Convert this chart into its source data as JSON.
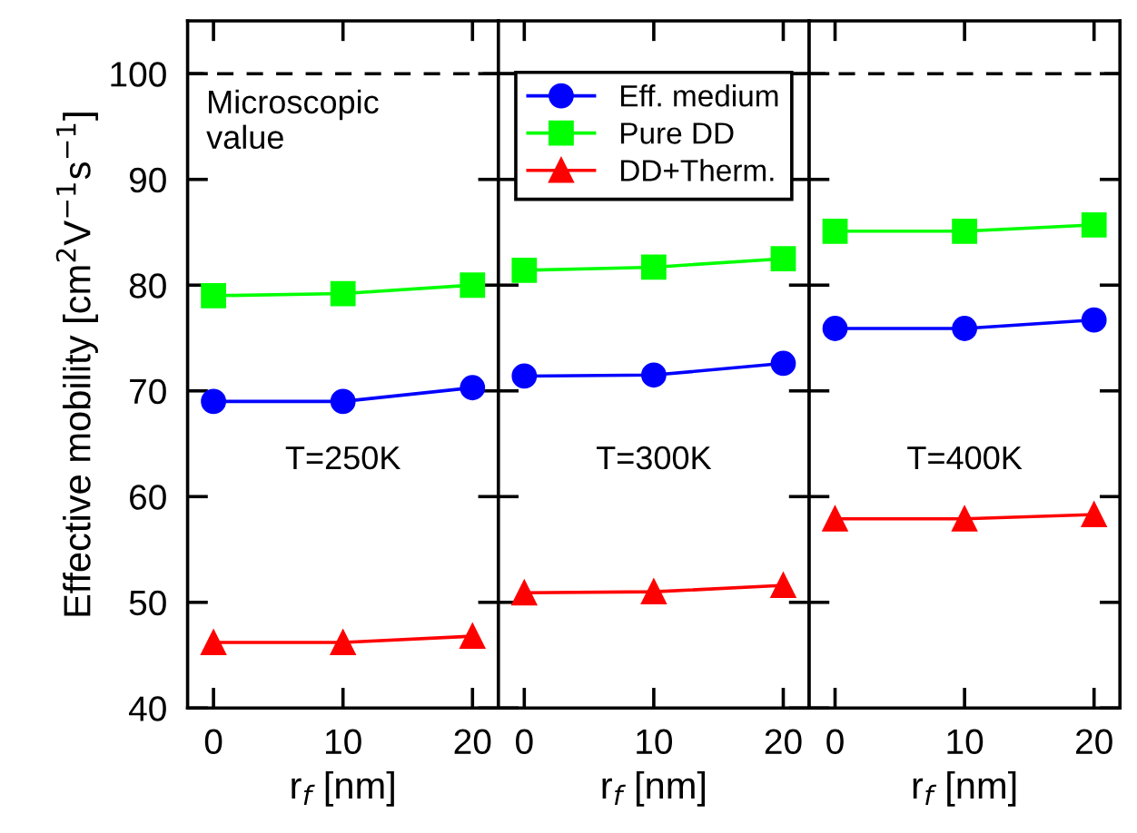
{
  "chart_data": [
    {
      "type": "line",
      "xlabel": "r$_{f}$ [nm]",
      "ylabel": "Effective mobility [cm$^{2}$V$^{−1}$s$^{−1}$]",
      "x": [
        0,
        10,
        20
      ],
      "xlim": [
        -2,
        22
      ],
      "xticks": [
        0,
        10,
        20
      ],
      "ylim": [
        40,
        105
      ],
      "yticks": [
        40,
        50,
        60,
        70,
        80,
        90,
        100
      ],
      "legend": false,
      "grid": false,
      "series": [
        {
          "color": "#0000ff",
          "marker": "circle",
          "values": [
            69.0,
            69.0,
            70.3
          ]
        },
        {
          "color": "#00ff00",
          "marker": "square",
          "values": [
            79.0,
            79.2,
            80.0
          ]
        },
        {
          "color": "#ff0000",
          "marker": "triangle",
          "values": [
            46.2,
            46.2,
            46.8
          ]
        }
      ],
      "ref_lines": [
        {
          "axis": "y",
          "value": 100,
          "label": "Microscopic\nvalue",
          "color": "#000000",
          "line_style": "dashed"
        }
      ],
      "annotations": [
        "T=250K"
      ]
    },
    {
      "type": "line",
      "xlabel": "r$_{f}$ [nm]",
      "x": [
        0,
        10,
        20
      ],
      "xlim": [
        -2,
        22
      ],
      "xticks": [
        0,
        10,
        20
      ],
      "ylim": [
        40,
        105
      ],
      "yticks": [
        40,
        50,
        60,
        70,
        80,
        90,
        100
      ],
      "tick_labels": "x",
      "legend": "top",
      "grid": false,
      "series": [
        {
          "name": "Eff. medium",
          "color": "#0000ff",
          "marker": "circle",
          "values": [
            71.4,
            71.5,
            72.6
          ]
        },
        {
          "name": "Pure DD",
          "color": "#00ff00",
          "marker": "square",
          "values": [
            81.4,
            81.7,
            82.5
          ]
        },
        {
          "name": "DD+Therm.",
          "color": "#ff0000",
          "marker": "triangle",
          "values": [
            50.9,
            51.0,
            51.6
          ]
        }
      ],
      "ref_lines": [
        {
          "axis": "y",
          "value": 100,
          "color": "#000000",
          "line_style": "dashed"
        }
      ],
      "annotations": [
        "T=300K"
      ]
    },
    {
      "type": "line",
      "xlabel": "r$_{f}$ [nm]",
      "x": [
        0,
        10,
        20
      ],
      "xlim": [
        -2,
        22
      ],
      "xticks": [
        0,
        10,
        20
      ],
      "ylim": [
        40,
        105
      ],
      "yticks": [
        40,
        50,
        60,
        70,
        80,
        90,
        100
      ],
      "tick_labels": "x",
      "legend": false,
      "grid": false,
      "series": [
        {
          "color": "#0000ff",
          "marker": "circle",
          "values": [
            75.9,
            75.9,
            76.7
          ]
        },
        {
          "color": "#00ff00",
          "marker": "square",
          "values": [
            85.1,
            85.1,
            85.7
          ]
        },
        {
          "color": "#ff0000",
          "marker": "triangle",
          "values": [
            57.9,
            57.9,
            58.3
          ]
        }
      ],
      "ref_lines": [
        {
          "axis": "y",
          "value": 100,
          "color": "#000000",
          "line_style": "dashed"
        }
      ],
      "annotations": [
        "T=400K"
      ]
    }
  ]
}
